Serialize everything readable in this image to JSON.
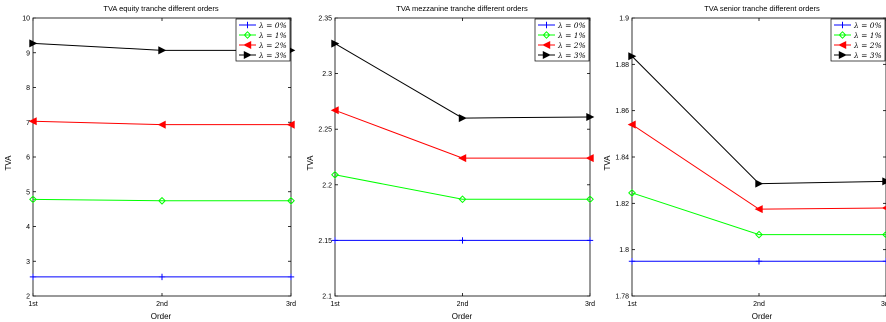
{
  "chart_data": [
    {
      "type": "line",
      "title": "TVA equity tranche different orders",
      "xlabel": "Order",
      "ylabel": "TVA",
      "categories": [
        "1st",
        "2nd",
        "3rd"
      ],
      "ylim": [
        2,
        10
      ],
      "yticks": [
        "2",
        "3",
        "4",
        "5",
        "6",
        "7",
        "8",
        "9",
        "10"
      ],
      "legend_position": "top-right",
      "series": [
        {
          "name": "λ = 0%",
          "color": "#0000ff",
          "marker": "plus",
          "values": [
            2.55,
            2.55,
            2.55
          ]
        },
        {
          "name": "λ = 1%",
          "color": "#00ff00",
          "marker": "diamond",
          "values": [
            4.78,
            4.74,
            4.74
          ]
        },
        {
          "name": "λ = 2%",
          "color": "#ff0000",
          "marker": "triangle-left",
          "values": [
            7.03,
            6.93,
            6.93
          ]
        },
        {
          "name": "λ = 3%",
          "color": "#000000",
          "marker": "triangle-right",
          "values": [
            9.27,
            9.07,
            9.07
          ]
        }
      ]
    },
    {
      "type": "line",
      "title": "TVA mezzanine tranche different orders",
      "xlabel": "Order",
      "ylabel": "TVA",
      "categories": [
        "1st",
        "2nd",
        "3rd"
      ],
      "ylim": [
        2.1,
        2.35
      ],
      "yticks": [
        "2.1",
        "2.15",
        "2.2",
        "2.25",
        "2.3",
        "2.35"
      ],
      "legend_position": "top-right",
      "series": [
        {
          "name": "λ = 0%",
          "color": "#0000ff",
          "marker": "plus",
          "values": [
            2.15,
            2.15,
            2.15
          ]
        },
        {
          "name": "λ = 1%",
          "color": "#00ff00",
          "marker": "diamond",
          "values": [
            2.209,
            2.187,
            2.187
          ]
        },
        {
          "name": "λ = 2%",
          "color": "#ff0000",
          "marker": "triangle-left",
          "values": [
            2.267,
            2.224,
            2.224
          ]
        },
        {
          "name": "λ = 3%",
          "color": "#000000",
          "marker": "triangle-right",
          "values": [
            2.327,
            2.26,
            2.261
          ]
        }
      ]
    },
    {
      "type": "line",
      "title": "TVA senior tranche different orders",
      "xlabel": "Order",
      "ylabel": "TVA",
      "categories": [
        "1st",
        "2nd",
        "3rd"
      ],
      "ylim": [
        1.78,
        1.9
      ],
      "yticks": [
        "1.78",
        "1.8",
        "1.82",
        "1.84",
        "1.86",
        "1.88",
        "1.9"
      ],
      "legend_position": "top-right",
      "series": [
        {
          "name": "λ = 0%",
          "color": "#0000ff",
          "marker": "plus",
          "values": [
            1.795,
            1.795,
            1.795
          ]
        },
        {
          "name": "λ = 1%",
          "color": "#00ff00",
          "marker": "diamond",
          "values": [
            1.8245,
            1.8065,
            1.8065
          ]
        },
        {
          "name": "λ = 2%",
          "color": "#ff0000",
          "marker": "triangle-left",
          "values": [
            1.854,
            1.8175,
            1.818
          ]
        },
        {
          "name": "λ = 3%",
          "color": "#000000",
          "marker": "triangle-right",
          "values": [
            1.8835,
            1.8285,
            1.8295
          ]
        }
      ]
    }
  ]
}
